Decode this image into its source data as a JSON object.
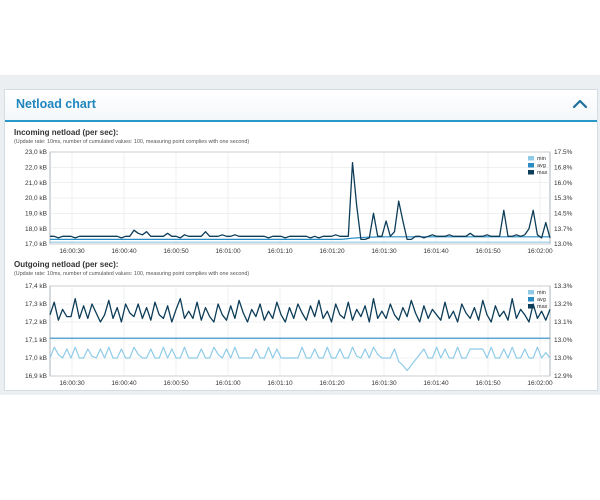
{
  "panel": {
    "title": "Netload chart",
    "collapse_icon": "chevron-up-icon"
  },
  "chart_data": [
    {
      "type": "line",
      "title": "Incoming netload (per sec):",
      "subtitle": "(Update rate: 10ms, number of cumulated values: 100, measuring point complies with one second)",
      "x_tick_labels": [
        "16:00:30",
        "16:00:40",
        "16:00:50",
        "16:01:00",
        "16:01:10",
        "16:01:20",
        "16:01:30",
        "16:01:40",
        "16:01:50",
        "16:02:00"
      ],
      "y_tick_labels": [
        "17,0 kB",
        "18,0 kB",
        "19,0 kB",
        "20,0 kB",
        "21,0 kB",
        "22,0 kB",
        "23,0 kB"
      ],
      "y_ticks": [
        17,
        18,
        19,
        20,
        21,
        22,
        23
      ],
      "ylim": [
        17,
        23
      ],
      "y2_tick_labels": [
        "13.0%",
        "13.7%",
        "14.5%",
        "15.3%",
        "16.0%",
        "16.8%",
        "17.5%"
      ],
      "y2_ticks": [
        13.0,
        13.75,
        14.5,
        15.25,
        16.0,
        16.75,
        17.5
      ],
      "y2lim": [
        13.0,
        17.5
      ],
      "grid": true,
      "legend_position": "top-right",
      "series": [
        {
          "name": "min",
          "color": "#8fcbe8"
        },
        {
          "name": "avg",
          "color": "#2a8cc4"
        },
        {
          "name": "max",
          "color": "#0d3d58"
        }
      ],
      "x": [
        0,
        1,
        2,
        3,
        4,
        5,
        6,
        7,
        8,
        9,
        10,
        11,
        12,
        13,
        14,
        15,
        16,
        17,
        18,
        19,
        20,
        21,
        22,
        23,
        24,
        25,
        26,
        27,
        28,
        29,
        30,
        31,
        32,
        33,
        34,
        35,
        36,
        37,
        38,
        39,
        40,
        41,
        42,
        43,
        44,
        45,
        46,
        47,
        48,
        49,
        50,
        51,
        52,
        53,
        54,
        55,
        56,
        57,
        58,
        59,
        60,
        61,
        62,
        63,
        64,
        65,
        66,
        67,
        68,
        69,
        70,
        71,
        72,
        73,
        74,
        75,
        76,
        77,
        78,
        79,
        80,
        81,
        82,
        83,
        84,
        85,
        86,
        87,
        88,
        89,
        90,
        91,
        92,
        93,
        94,
        95,
        96,
        97,
        98,
        99,
        100,
        101,
        102,
        103,
        104,
        105,
        106,
        107,
        108,
        109,
        110,
        111,
        112,
        113,
        114,
        115,
        116,
        117,
        118,
        119
      ],
      "y_max": [
        17.5,
        17.5,
        17.4,
        17.5,
        17.5,
        17.5,
        17.4,
        17.5,
        17.5,
        17.5,
        17.5,
        17.5,
        17.5,
        17.5,
        17.5,
        17.5,
        17.5,
        17.4,
        17.5,
        17.5,
        17.9,
        17.7,
        17.6,
        17.8,
        17.5,
        17.5,
        17.5,
        17.5,
        17.7,
        17.5,
        17.5,
        17.4,
        17.6,
        17.5,
        17.5,
        17.5,
        17.5,
        17.8,
        17.5,
        17.5,
        17.5,
        17.6,
        17.5,
        17.5,
        17.6,
        17.5,
        17.5,
        17.5,
        17.5,
        17.5,
        17.5,
        17.5,
        17.4,
        17.5,
        17.5,
        17.5,
        17.4,
        17.5,
        17.5,
        17.5,
        17.5,
        17.5,
        17.4,
        17.5,
        17.4,
        17.5,
        17.5,
        17.5,
        17.6,
        17.5,
        17.5,
        17.5,
        22.3,
        19.5,
        17.3,
        17.3,
        17.4,
        19.0,
        17.5,
        17.5,
        18.5,
        17.5,
        17.8,
        19.8,
        18.5,
        17.3,
        17.3,
        17.5,
        17.5,
        17.4,
        17.5,
        17.6,
        17.5,
        17.5,
        17.5,
        17.6,
        17.5,
        17.5,
        17.5,
        17.5,
        17.7,
        17.5,
        17.5,
        17.5,
        17.6,
        17.5,
        17.5,
        17.5,
        19.2,
        17.5,
        17.5,
        17.6,
        17.5,
        17.6,
        18.0,
        19.2,
        17.6,
        17.4,
        18.4,
        17.4
      ],
      "y_avg": [
        17.3,
        17.3,
        17.3,
        17.3,
        17.3,
        17.3,
        17.3,
        17.3,
        17.3,
        17.3,
        17.3,
        17.3,
        17.3,
        17.3,
        17.3,
        17.3,
        17.3,
        17.3,
        17.3,
        17.3,
        17.3,
        17.3,
        17.3,
        17.3,
        17.3,
        17.3,
        17.3,
        17.3,
        17.3,
        17.3,
        17.3,
        17.3,
        17.3,
        17.3,
        17.3,
        17.3,
        17.3,
        17.3,
        17.3,
        17.3,
        17.3,
        17.3,
        17.3,
        17.3,
        17.3,
        17.3,
        17.3,
        17.3,
        17.3,
        17.3,
        17.3,
        17.3,
        17.3,
        17.3,
        17.3,
        17.3,
        17.3,
        17.3,
        17.3,
        17.3,
        17.3,
        17.3,
        17.3,
        17.3,
        17.3,
        17.3,
        17.3,
        17.3,
        17.3,
        17.3,
        17.32,
        17.35,
        17.38,
        17.4,
        17.42,
        17.44,
        17.45,
        17.45,
        17.46,
        17.46,
        17.47,
        17.47,
        17.47,
        17.47,
        17.47,
        17.47,
        17.47,
        17.47,
        17.47,
        17.47,
        17.47,
        17.47,
        17.47,
        17.47,
        17.47,
        17.47,
        17.47,
        17.47,
        17.47,
        17.47,
        17.47,
        17.47,
        17.47,
        17.47,
        17.47,
        17.47,
        17.47,
        17.47,
        17.47,
        17.47,
        17.47,
        17.47,
        17.47,
        17.47,
        17.47,
        17.47,
        17.47,
        17.47,
        17.47,
        17.47
      ],
      "y_min": [
        17.12,
        17.12,
        17.12,
        17.12,
        17.12,
        17.12,
        17.12,
        17.12,
        17.12,
        17.12,
        17.12,
        17.12,
        17.12,
        17.12,
        17.12,
        17.12,
        17.12,
        17.12,
        17.12,
        17.12,
        17.12,
        17.12,
        17.12,
        17.12,
        17.12,
        17.12,
        17.12,
        17.12,
        17.12,
        17.12,
        17.12,
        17.12,
        17.12,
        17.12,
        17.12,
        17.12,
        17.12,
        17.12,
        17.12,
        17.12,
        17.12,
        17.12,
        17.12,
        17.12,
        17.12,
        17.12,
        17.12,
        17.12,
        17.12,
        17.12,
        17.12,
        17.12,
        17.12,
        17.12,
        17.12,
        17.12,
        17.12,
        17.12,
        17.12,
        17.12,
        17.12,
        17.12,
        17.12,
        17.12,
        17.12,
        17.12,
        17.12,
        17.12,
        17.12,
        17.12,
        17.12,
        17.12,
        17.12,
        17.12,
        17.12,
        17.12,
        17.12,
        17.12,
        17.12,
        17.12,
        17.12,
        17.12,
        17.12,
        17.12,
        17.12,
        17.12,
        17.12,
        17.12,
        17.12,
        17.12,
        17.12,
        17.12,
        17.12,
        17.12,
        17.12,
        17.12,
        17.12,
        17.12,
        17.12,
        17.12,
        17.12,
        17.12,
        17.12,
        17.12,
        17.12,
        17.12,
        17.12,
        17.12,
        17.12,
        17.12,
        17.12,
        17.12,
        17.12,
        17.12,
        17.12,
        17.12,
        17.12,
        17.12,
        17.12,
        17.12
      ]
    },
    {
      "type": "line",
      "title": "Outgoing netload (per sec):",
      "subtitle": "(Update rate: 10ms, number of cumulated values: 100, measuring point complies with one second)",
      "x_tick_labels": [
        "16:00:30",
        "16:00:40",
        "16:00:50",
        "16:01:00",
        "16:01:10",
        "16:01:20",
        "16:01:30",
        "16:01:40",
        "16:01:50",
        "16:02:00"
      ],
      "y_tick_labels": [
        "16,9 kB",
        "17,0 kB",
        "17,1 kB",
        "17,2 kB",
        "17,3 kB",
        "17,4 kB"
      ],
      "y_ticks": [
        16.9,
        17.0,
        17.1,
        17.2,
        17.3,
        17.4
      ],
      "ylim": [
        16.9,
        17.4
      ],
      "y2_tick_labels": [
        "12.9%",
        "13.0%",
        "13.0%",
        "13.1%",
        "13.2%",
        "13.3%"
      ],
      "y2_ticks": [
        12.9,
        12.98,
        13.06,
        13.14,
        13.22,
        13.3
      ],
      "y2lim": [
        12.9,
        13.3
      ],
      "grid": true,
      "legend_position": "top-right",
      "series": [
        {
          "name": "min",
          "color": "#8fcbe8"
        },
        {
          "name": "avg",
          "color": "#2a8cc4"
        },
        {
          "name": "max",
          "color": "#0d3d58"
        }
      ],
      "x": [
        0,
        1,
        2,
        3,
        4,
        5,
        6,
        7,
        8,
        9,
        10,
        11,
        12,
        13,
        14,
        15,
        16,
        17,
        18,
        19,
        20,
        21,
        22,
        23,
        24,
        25,
        26,
        27,
        28,
        29,
        30,
        31,
        32,
        33,
        34,
        35,
        36,
        37,
        38,
        39,
        40,
        41,
        42,
        43,
        44,
        45,
        46,
        47,
        48,
        49,
        50,
        51,
        52,
        53,
        54,
        55,
        56,
        57,
        58,
        59,
        60,
        61,
        62,
        63,
        64,
        65,
        66,
        67,
        68,
        69,
        70,
        71,
        72,
        73,
        74,
        75,
        76,
        77,
        78,
        79,
        80,
        81,
        82,
        83,
        84,
        85,
        86,
        87,
        88,
        89,
        90,
        91,
        92,
        93,
        94,
        95,
        96,
        97,
        98,
        99,
        100,
        101,
        102,
        103,
        104,
        105,
        106,
        107,
        108,
        109,
        110,
        111,
        112,
        113,
        114,
        115,
        116,
        117,
        118,
        119
      ],
      "y_max": [
        17.24,
        17.31,
        17.21,
        17.27,
        17.23,
        17.23,
        17.33,
        17.22,
        17.29,
        17.22,
        17.3,
        17.25,
        17.2,
        17.24,
        17.32,
        17.22,
        17.28,
        17.2,
        17.3,
        17.25,
        17.23,
        17.3,
        17.22,
        17.28,
        17.21,
        17.31,
        17.24,
        17.22,
        17.29,
        17.2,
        17.27,
        17.33,
        17.22,
        17.26,
        17.22,
        17.31,
        17.21,
        17.28,
        17.23,
        17.2,
        17.3,
        17.24,
        17.21,
        17.29,
        17.22,
        17.32,
        17.25,
        17.2,
        17.27,
        17.23,
        17.3,
        17.21,
        17.26,
        17.22,
        17.31,
        17.24,
        17.2,
        17.28,
        17.22,
        17.3,
        17.25,
        17.21,
        17.29,
        17.23,
        17.32,
        17.22,
        17.26,
        17.2,
        17.3,
        17.24,
        17.22,
        17.31,
        17.21,
        17.27,
        17.23,
        17.29,
        17.2,
        17.33,
        17.22,
        17.26,
        17.22,
        17.3,
        17.24,
        17.21,
        17.28,
        17.23,
        17.32,
        17.25,
        17.2,
        17.29,
        17.22,
        17.27,
        17.24,
        17.21,
        17.31,
        17.22,
        17.26,
        17.2,
        17.3,
        17.25,
        17.22,
        17.28,
        17.21,
        17.32,
        17.24,
        17.2,
        17.29,
        17.23,
        17.26,
        17.21,
        17.33,
        17.22,
        17.27,
        17.24,
        17.2,
        17.3,
        17.22,
        17.26,
        17.21,
        17.27
      ],
      "y_avg": [
        17.11,
        17.11,
        17.11,
        17.11,
        17.11,
        17.11,
        17.11,
        17.11,
        17.11,
        17.11,
        17.11,
        17.11,
        17.11,
        17.11,
        17.11,
        17.11,
        17.11,
        17.11,
        17.11,
        17.11,
        17.11,
        17.11,
        17.11,
        17.11,
        17.11,
        17.11,
        17.11,
        17.11,
        17.11,
        17.11,
        17.11,
        17.11,
        17.11,
        17.11,
        17.11,
        17.11,
        17.11,
        17.11,
        17.11,
        17.11,
        17.11,
        17.11,
        17.11,
        17.11,
        17.11,
        17.11,
        17.11,
        17.11,
        17.11,
        17.11,
        17.11,
        17.11,
        17.11,
        17.11,
        17.11,
        17.11,
        17.11,
        17.11,
        17.11,
        17.11,
        17.11,
        17.11,
        17.11,
        17.11,
        17.11,
        17.11,
        17.11,
        17.11,
        17.11,
        17.11,
        17.11,
        17.11,
        17.11,
        17.11,
        17.11,
        17.11,
        17.11,
        17.11,
        17.11,
        17.11,
        17.11,
        17.11,
        17.11,
        17.11,
        17.11,
        17.11,
        17.11,
        17.11,
        17.11,
        17.11,
        17.11,
        17.11,
        17.11,
        17.11,
        17.11,
        17.11,
        17.11,
        17.11,
        17.11,
        17.11,
        17.11,
        17.11,
        17.11,
        17.11,
        17.11,
        17.11,
        17.11,
        17.11,
        17.11,
        17.11,
        17.11,
        17.11,
        17.11,
        17.11,
        17.11,
        17.11,
        17.11,
        17.11,
        17.11,
        17.11
      ],
      "y_min": [
        17.0,
        17.06,
        17.02,
        17.0,
        17.05,
        17.0,
        17.06,
        17.0,
        17.0,
        17.05,
        17.01,
        17.0,
        17.05,
        17.0,
        17.06,
        17.0,
        17.0,
        17.05,
        17.0,
        17.0,
        17.06,
        17.02,
        17.0,
        17.0,
        17.05,
        17.0,
        17.0,
        17.06,
        17.0,
        17.05,
        17.0,
        17.0,
        17.06,
        17.0,
        17.0,
        17.0,
        17.05,
        17.0,
        17.0,
        17.06,
        17.02,
        17.0,
        17.05,
        17.0,
        17.06,
        17.0,
        17.0,
        17.0,
        17.0,
        17.05,
        17.0,
        17.0,
        17.06,
        17.0,
        17.05,
        17.0,
        17.0,
        17.0,
        17.0,
        17.0,
        17.06,
        17.0,
        17.0,
        17.05,
        17.0,
        17.0,
        17.06,
        17.0,
        17.0,
        17.05,
        17.0,
        17.0,
        17.06,
        17.01,
        17.0,
        17.05,
        17.0,
        17.06,
        17.02,
        17.0,
        17.0,
        17.0,
        17.05,
        16.98,
        16.96,
        16.93,
        16.96,
        16.99,
        17.02,
        17.05,
        17.0,
        17.0,
        17.06,
        17.0,
        17.05,
        17.0,
        17.0,
        17.06,
        17.0,
        17.0,
        17.05,
        17.05,
        17.05,
        17.05,
        17.0,
        17.06,
        17.0,
        17.0,
        17.05,
        17.0,
        17.06,
        17.0,
        17.0,
        17.05,
        17.0,
        17.0,
        17.06,
        17.0,
        17.03,
        17.0
      ]
    }
  ]
}
